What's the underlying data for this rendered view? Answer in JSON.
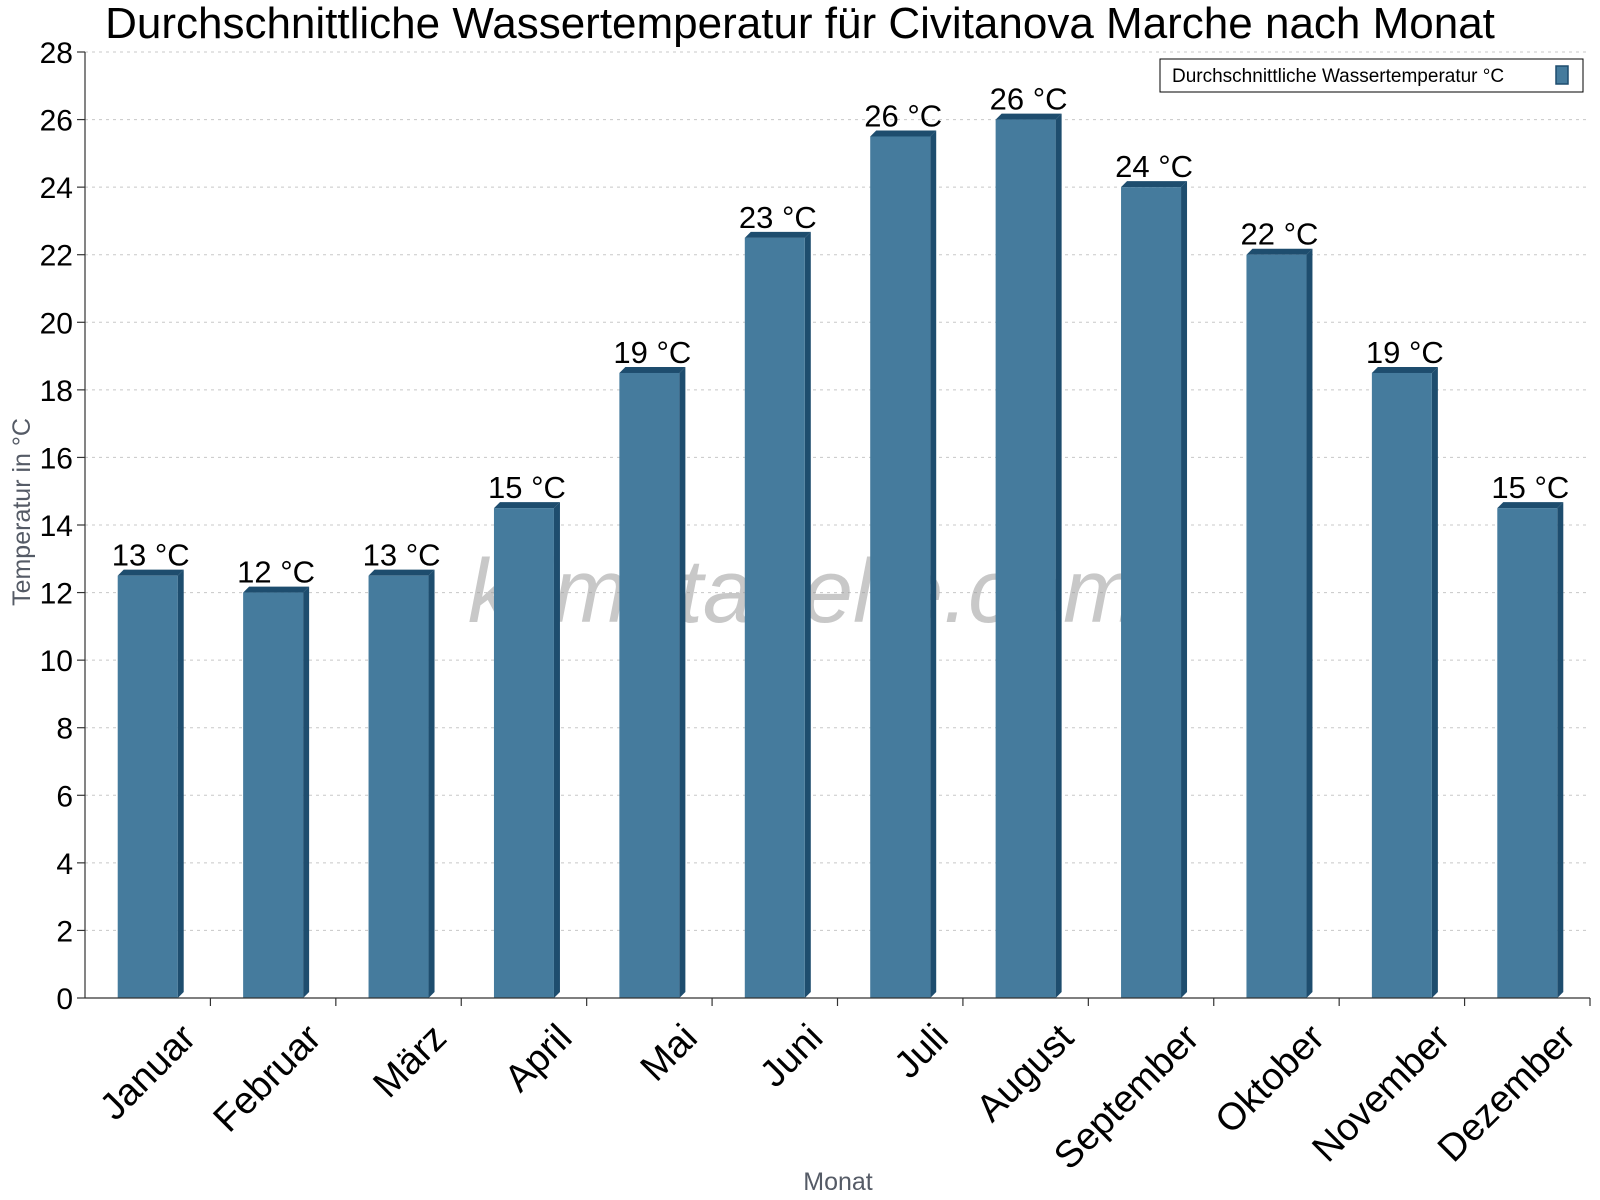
{
  "chart_data": {
    "type": "bar",
    "title": "Durchschnittliche Wassertemperatur für Civitanova Marche nach Monat",
    "xlabel": "Monat",
    "ylabel": "Temperatur in °C",
    "categories": [
      "Januar",
      "Februar",
      "März",
      "April",
      "Mai",
      "Juni",
      "Juli",
      "August",
      "September",
      "Oktober",
      "November",
      "Dezember"
    ],
    "series": [
      {
        "name": "Durchschnittliche Wassertemperatur °C",
        "values": [
          12.5,
          12.0,
          12.5,
          14.5,
          18.5,
          22.5,
          25.5,
          26.0,
          24.0,
          22.0,
          18.5,
          14.5
        ],
        "labels": [
          "13 °C",
          "12 °C",
          "13 °C",
          "15 °C",
          "19 °C",
          "23 °C",
          "26 °C",
          "26 °C",
          "24 °C",
          "22 °C",
          "19 °C",
          "15 °C"
        ],
        "color": "#457b9d",
        "shade_color": "#1e4d6e"
      }
    ],
    "ylim": [
      0,
      28
    ],
    "yticks": [
      0,
      2,
      4,
      6,
      8,
      10,
      12,
      14,
      16,
      18,
      20,
      22,
      24,
      26,
      28
    ],
    "grid": true,
    "legend_position": "top-right",
    "watermark": "klimatabelle.com"
  }
}
